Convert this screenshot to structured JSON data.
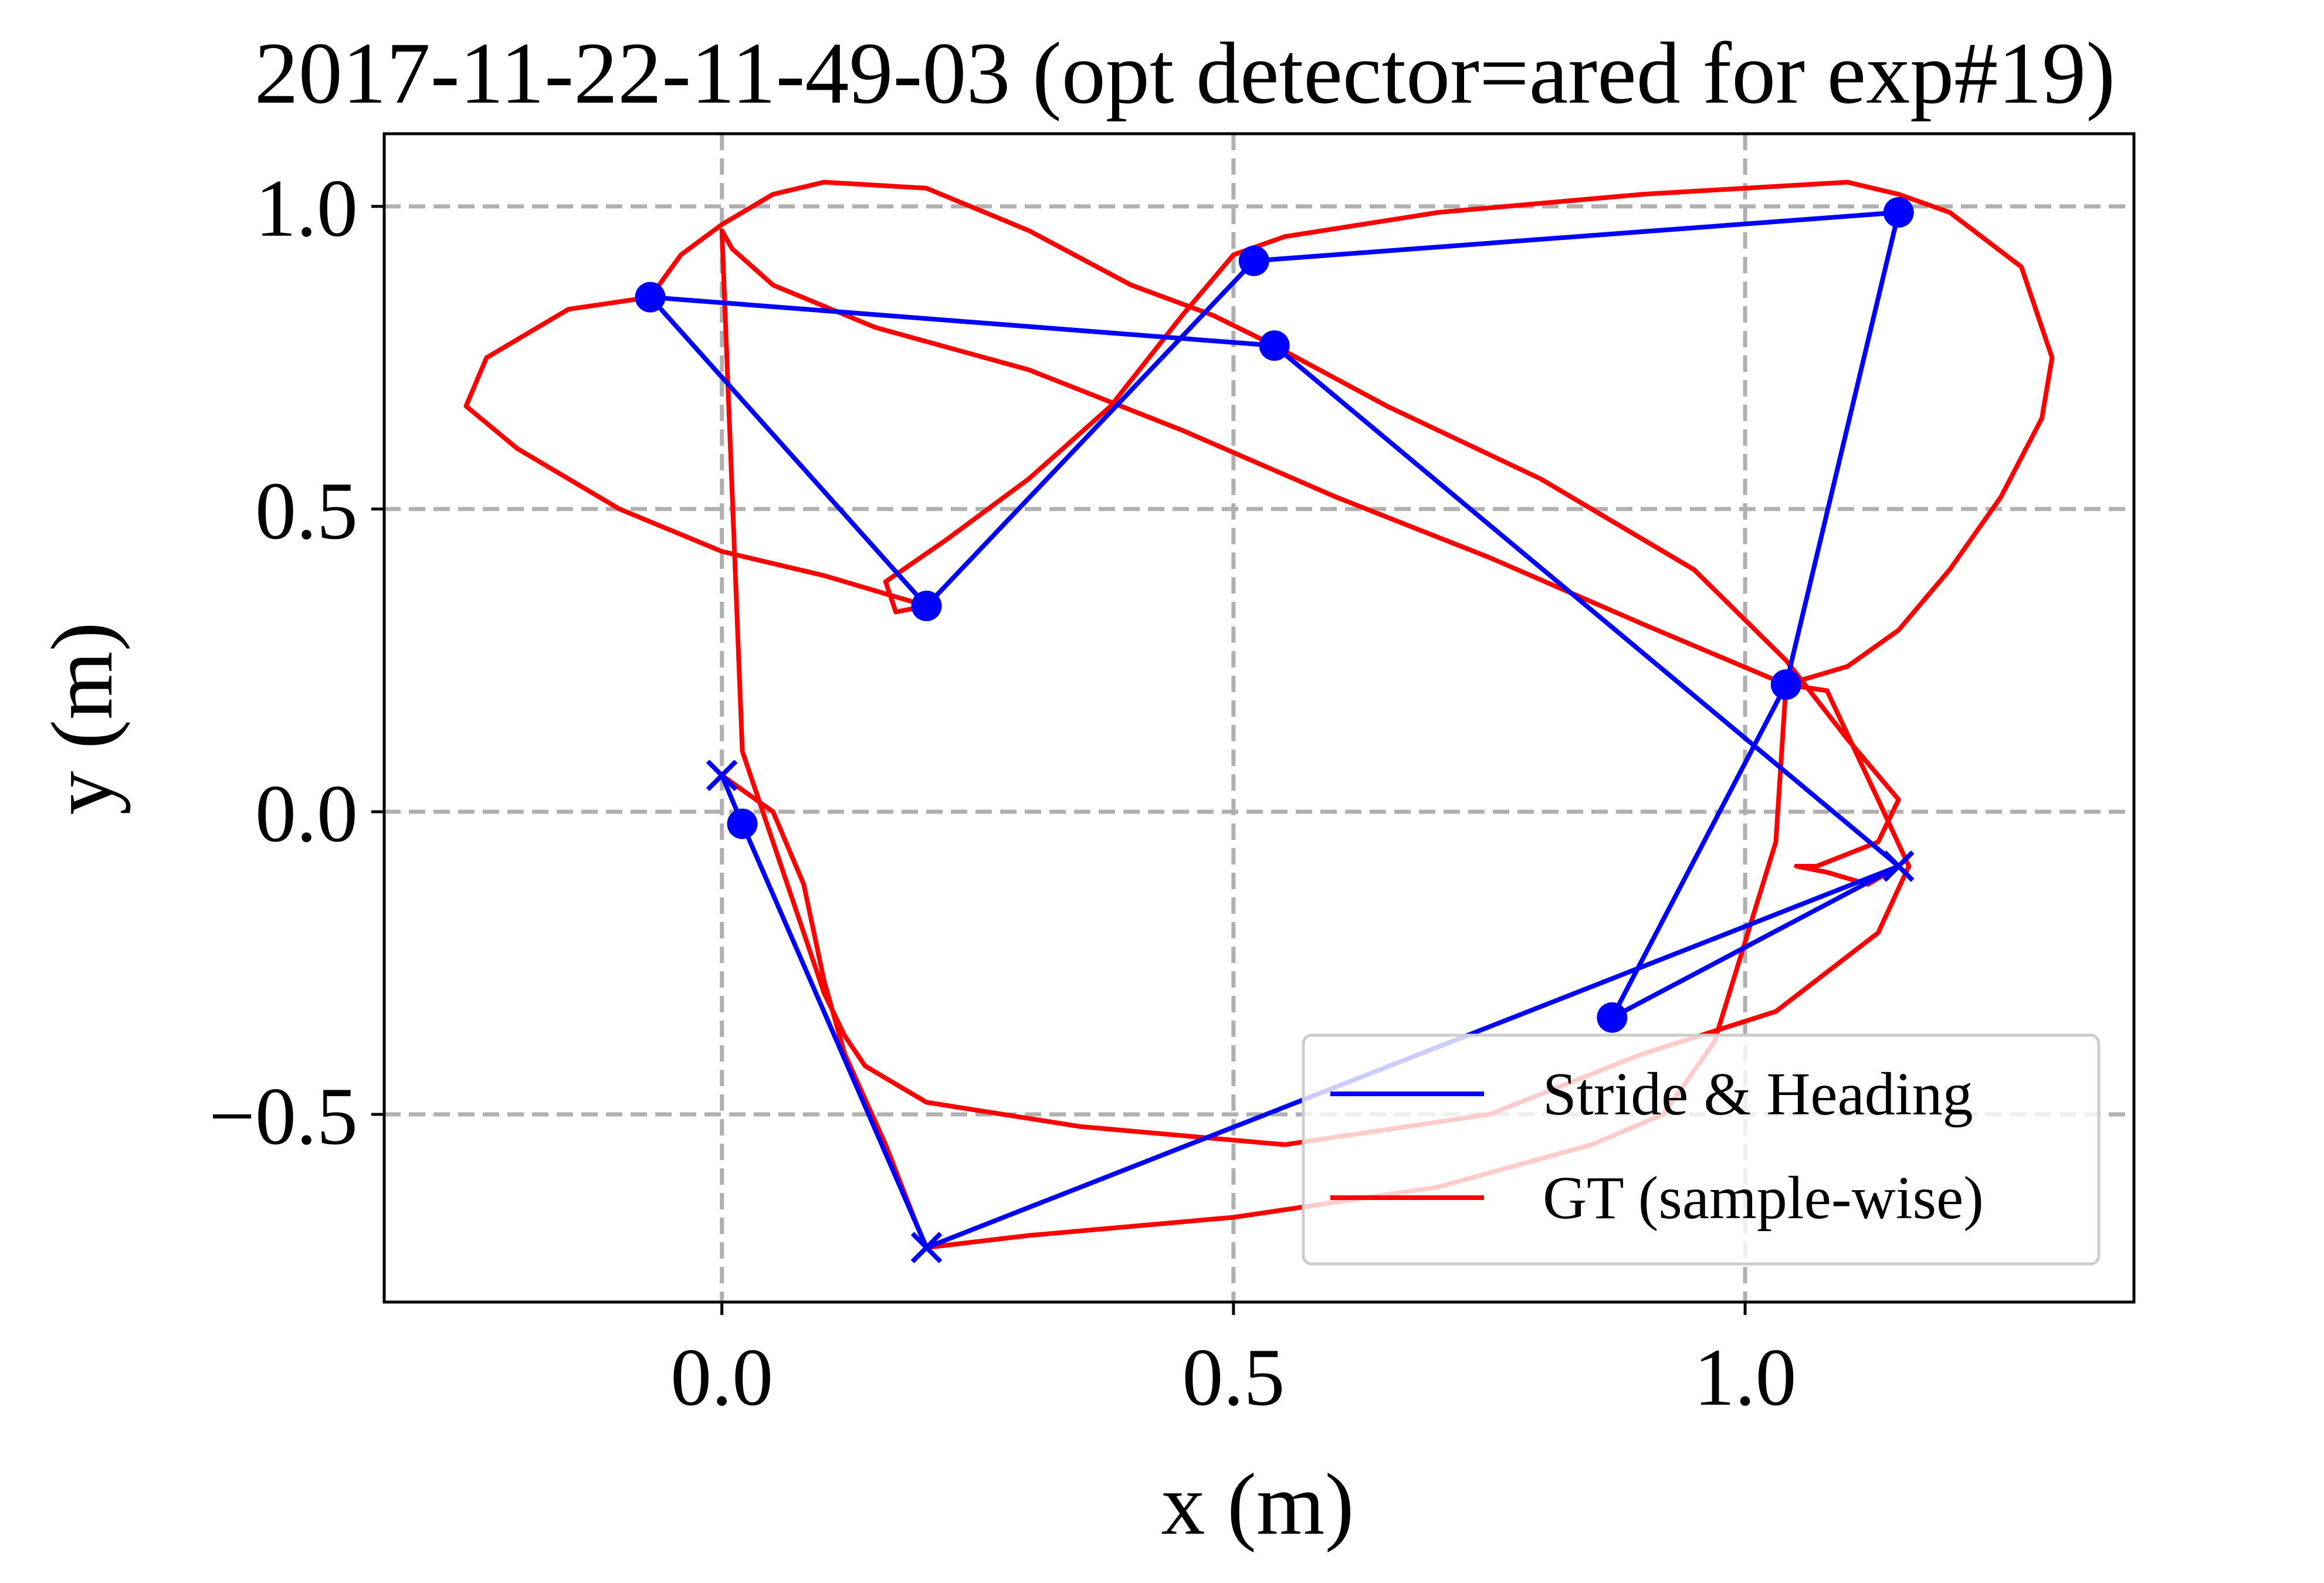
{
  "chart_data": {
    "type": "line",
    "title": "2017-11-22-11-49-03 (opt detector=ared for exp#19)",
    "xlabel": "x (m)",
    "ylabel": "y (m)",
    "xlim": [
      -0.33,
      1.38
    ],
    "ylim": [
      -0.81,
      1.12
    ],
    "xticks": [
      0.0,
      0.5,
      1.0
    ],
    "xtick_labels": [
      "0.0",
      "0.5",
      "1.0"
    ],
    "yticks": [
      1.0,
      0.5,
      0.0,
      -0.5
    ],
    "ytick_labels": [
      "1.0",
      "0.5",
      "0.0",
      "−0.5"
    ],
    "grid": true,
    "legend_position": "lower-right",
    "colors": {
      "stride": "#0000ff",
      "gt": "#ff0000",
      "grid": "#b0b0b0"
    },
    "series": [
      {
        "name": "Stride & Heading",
        "color": "#0000ff",
        "x": [
          0.0,
          0.02,
          0.2,
          1.15,
          0.87,
          1.04,
          1.15,
          0.52,
          0.2,
          -0.07,
          0.54,
          1.15
        ],
        "y": [
          0.06,
          -0.02,
          -0.72,
          -0.09,
          -0.34,
          0.21,
          0.99,
          0.91,
          0.34,
          0.85,
          0.77,
          -0.09
        ],
        "markers": [
          {
            "x": 0.0,
            "y": 0.06,
            "symbol": "x"
          },
          {
            "x": 0.02,
            "y": -0.02,
            "symbol": "o"
          },
          {
            "x": 0.2,
            "y": -0.72,
            "symbol": "x"
          },
          {
            "x": 1.15,
            "y": -0.09,
            "symbol": "x"
          },
          {
            "x": 0.87,
            "y": -0.34,
            "symbol": "o"
          },
          {
            "x": 1.04,
            "y": 0.21,
            "symbol": "o"
          },
          {
            "x": 1.15,
            "y": 0.99,
            "symbol": "o"
          },
          {
            "x": 0.52,
            "y": 0.91,
            "symbol": "o"
          },
          {
            "x": 0.2,
            "y": 0.34,
            "symbol": "o"
          },
          {
            "x": -0.07,
            "y": 0.85,
            "symbol": "o"
          },
          {
            "x": 0.54,
            "y": 0.77,
            "symbol": "o"
          }
        ]
      },
      {
        "name": "GT (sample-wise)",
        "color": "#ff0000",
        "x": [
          0.0,
          0.05,
          0.08,
          0.1,
          0.12,
          0.16,
          0.19,
          0.2,
          0.3,
          0.5,
          0.7,
          0.85,
          0.92,
          0.97,
          1.03,
          1.04,
          0.9,
          0.75,
          0.6,
          0.45,
          0.3,
          0.15,
          0.05,
          0.01,
          -0.0,
          0.02,
          0.05,
          0.08,
          0.1,
          0.12,
          0.14,
          0.17,
          0.2,
          0.35,
          0.55,
          0.75,
          0.9,
          1.03,
          1.13,
          1.16,
          1.13,
          1.08,
          1.04,
          1.1,
          1.15,
          1.2,
          1.25,
          1.29,
          1.3,
          1.27,
          1.2,
          1.15,
          1.1,
          0.9,
          0.7,
          0.55,
          0.5,
          0.45,
          0.38,
          0.3,
          0.22,
          0.16,
          0.17,
          0.2,
          0.16,
          0.1,
          0.0,
          -0.1,
          -0.2,
          -0.25,
          -0.23,
          -0.15,
          -0.07,
          -0.04,
          0.0,
          0.05,
          0.1,
          0.2,
          0.3,
          0.4,
          0.48,
          0.54,
          0.65,
          0.8,
          0.95,
          1.04,
          1.1,
          1.15,
          1.13,
          1.07,
          1.05,
          1.08,
          1.12,
          1.15
        ],
        "y": [
          0.06,
          0.0,
          -0.12,
          -0.28,
          -0.4,
          -0.55,
          -0.68,
          -0.72,
          -0.7,
          -0.67,
          -0.62,
          -0.55,
          -0.5,
          -0.38,
          -0.05,
          0.21,
          0.31,
          0.42,
          0.52,
          0.63,
          0.73,
          0.8,
          0.87,
          0.93,
          0.96,
          0.1,
          -0.05,
          -0.2,
          -0.3,
          -0.37,
          -0.42,
          -0.45,
          -0.48,
          -0.52,
          -0.55,
          -0.5,
          -0.4,
          -0.33,
          -0.2,
          -0.09,
          0.02,
          0.2,
          0.21,
          0.24,
          0.3,
          0.4,
          0.52,
          0.65,
          0.75,
          0.9,
          0.99,
          1.02,
          1.04,
          1.02,
          0.99,
          0.95,
          0.92,
          0.82,
          0.67,
          0.55,
          0.45,
          0.38,
          0.33,
          0.34,
          0.36,
          0.39,
          0.43,
          0.5,
          0.6,
          0.67,
          0.75,
          0.83,
          0.85,
          0.92,
          0.97,
          1.02,
          1.04,
          1.03,
          0.96,
          0.87,
          0.82,
          0.77,
          0.67,
          0.55,
          0.4,
          0.25,
          0.12,
          0.02,
          -0.05,
          -0.09,
          -0.09,
          -0.1,
          -0.12,
          -0.09
        ]
      }
    ]
  }
}
